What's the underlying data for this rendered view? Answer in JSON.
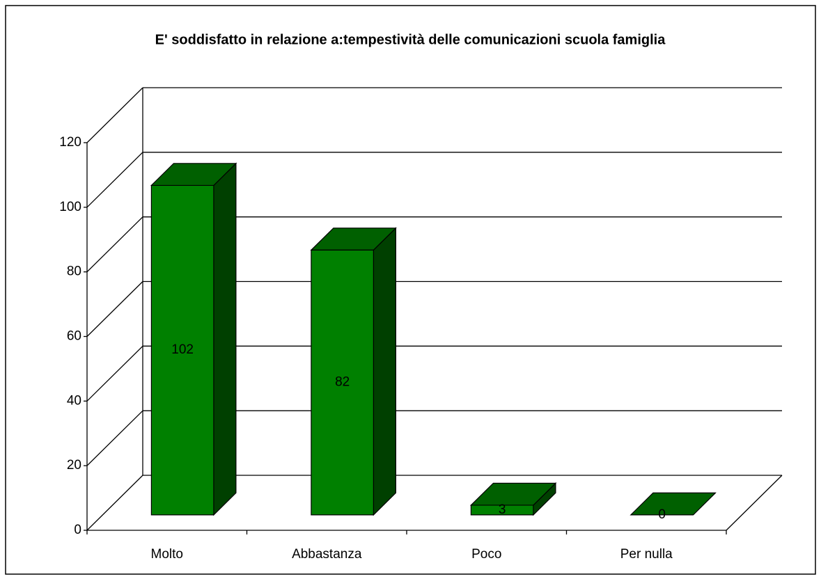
{
  "chart_data": {
    "type": "bar3d",
    "title": "E' soddisfatto in relazione a:tempestività delle comunicazioni scuola famiglia",
    "categories": [
      "Molto",
      "Abbastanza",
      "Poco",
      "Per nulla"
    ],
    "values": [
      102,
      82,
      3,
      0
    ],
    "color": "#008000",
    "ylim": [
      0,
      120
    ],
    "yticks": [
      0,
      20,
      40,
      60,
      80,
      100,
      120
    ],
    "grid": true
  }
}
